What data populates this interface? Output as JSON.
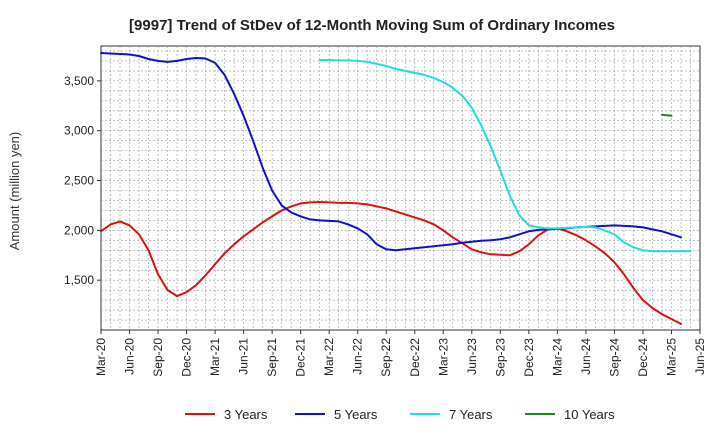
{
  "chart_data": {
    "type": "line",
    "title": "[9997]  Trend of StDev of 12-Month Moving Sum of Ordinary Incomes",
    "xlabel": "",
    "ylabel": "Amount (million yen)",
    "x_ticks": [
      "Mar-20",
      "Jun-20",
      "Sep-20",
      "Dec-20",
      "Mar-21",
      "Jun-21",
      "Sep-21",
      "Dec-21",
      "Mar-22",
      "Jun-22",
      "Sep-22",
      "Dec-22",
      "Mar-23",
      "Jun-23",
      "Sep-23",
      "Dec-23",
      "Mar-24",
      "Jun-24",
      "Sep-24",
      "Dec-24",
      "Mar-25",
      "Jun-25"
    ],
    "y_ticks": [
      "1,500",
      "2,000",
      "2,500",
      "3,000",
      "3,500"
    ],
    "y_tick_values": [
      1500,
      2000,
      2500,
      3000,
      3500
    ],
    "ylim": [
      1000,
      3850
    ],
    "x_range_months": [
      "2020-03",
      "2025-06"
    ],
    "grid": true,
    "legend_position": "bottom",
    "series": [
      {
        "name": "3 Years",
        "color": "#dd1111",
        "start": "2020-03",
        "values": [
          1990,
          2060,
          2090,
          2050,
          1960,
          1800,
          1560,
          1400,
          1340,
          1380,
          1450,
          1550,
          1660,
          1770,
          1860,
          1940,
          2010,
          2080,
          2140,
          2200,
          2240,
          2270,
          2280,
          2285,
          2280,
          2275,
          2275,
          2270,
          2260,
          2240,
          2220,
          2190,
          2160,
          2130,
          2100,
          2060,
          2000,
          1930,
          1870,
          1810,
          1780,
          1760,
          1755,
          1750,
          1790,
          1860,
          1950,
          2010,
          2020,
          1990,
          1950,
          1900,
          1840,
          1770,
          1680,
          1560,
          1420,
          1300,
          1220,
          1160,
          1110,
          1060
        ]
      },
      {
        "name": "5 Years",
        "color": "#1111cc",
        "start": "2020-03",
        "values": [
          3780,
          3775,
          3770,
          3765,
          3750,
          3720,
          3700,
          3690,
          3700,
          3720,
          3730,
          3725,
          3680,
          3560,
          3370,
          3150,
          2900,
          2630,
          2400,
          2250,
          2180,
          2140,
          2110,
          2100,
          2095,
          2090,
          2060,
          2020,
          1960,
          1860,
          1810,
          1800,
          1810,
          1820,
          1830,
          1840,
          1850,
          1860,
          1875,
          1885,
          1895,
          1900,
          1910,
          1930,
          1960,
          1990,
          2005,
          2010,
          2015,
          2020,
          2030,
          2035,
          2040,
          2045,
          2050,
          2045,
          2040,
          2030,
          2010,
          1990,
          1960,
          1930
        ]
      },
      {
        "name": "7 Years",
        "color": "#22dddd",
        "start": "2022-02",
        "values": [
          3710,
          3710,
          3705,
          3705,
          3700,
          3690,
          3670,
          3650,
          3620,
          3600,
          3580,
          3560,
          3530,
          3490,
          3430,
          3350,
          3230,
          3050,
          2840,
          2600,
          2350,
          2150,
          2050,
          2030,
          2020,
          2020,
          2025,
          2030,
          2035,
          2030,
          2000,
          1960,
          1880,
          1830,
          1800,
          1790,
          1790,
          1790,
          1790,
          1790
        ]
      },
      {
        "name": "10 Years",
        "color": "#228822",
        "start": "2025-02",
        "values": [
          3160,
          3150
        ]
      }
    ]
  }
}
